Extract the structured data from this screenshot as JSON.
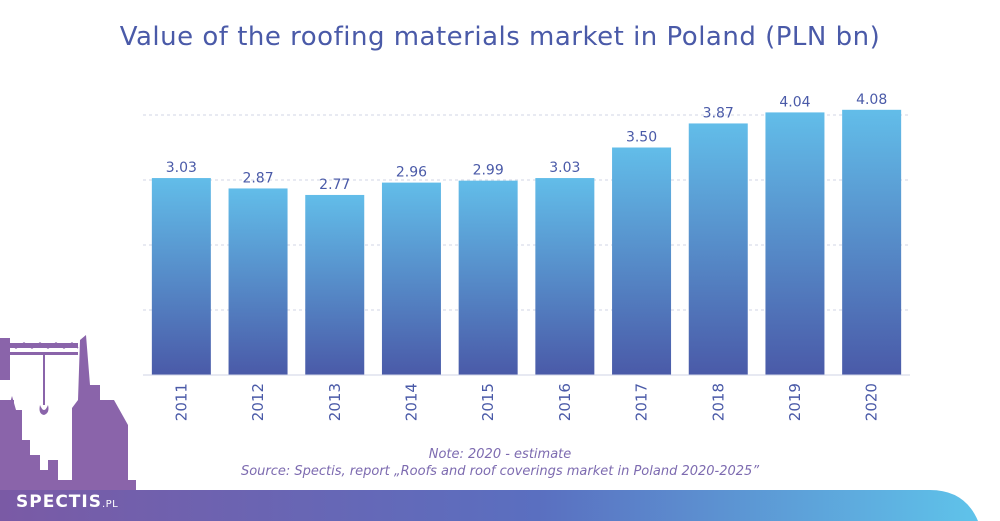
{
  "chart_data": {
    "type": "bar",
    "title": "Value of the roofing materials market in Poland (PLN bn)",
    "categories": [
      "2011",
      "2012",
      "2013",
      "2014",
      "2015",
      "2016",
      "2017",
      "2018",
      "2019",
      "2020"
    ],
    "values": [
      3.03,
      2.87,
      2.77,
      2.96,
      2.99,
      3.03,
      3.5,
      3.87,
      4.04,
      4.08
    ],
    "value_labels": [
      "3.03",
      "2.87",
      "2.77",
      "2.96",
      "2.99",
      "3.03",
      "3.50",
      "3.87",
      "4.04",
      "4.08"
    ],
    "ylim": [
      0,
      4.0
    ],
    "grid": true,
    "bar_gradient": [
      "#62bde9",
      "#4a5aa8"
    ]
  },
  "notes": {
    "estimate": "Note: 2020 - estimate",
    "source": "Source: Spectis, report „Roofs and roof coverings market in Poland 2020-2025”"
  },
  "brand": {
    "name": "SPECTIS",
    "domain": ".PL"
  }
}
